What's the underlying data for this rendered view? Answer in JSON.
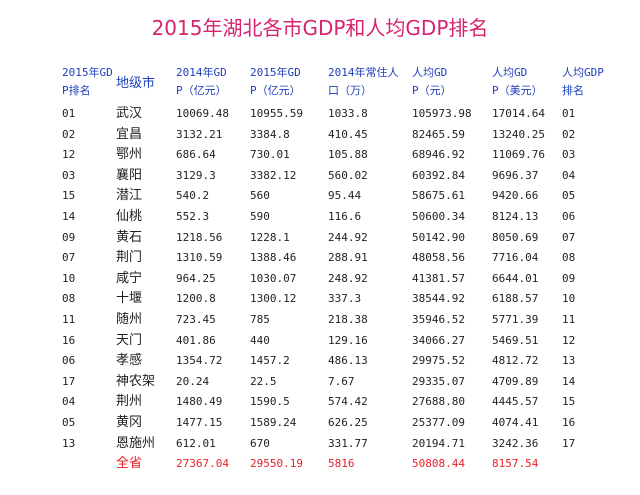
{
  "title": "2015年湖北各市GDP和人均GDP排名",
  "headers": [
    {
      "line1": "2015年GD",
      "line2": "P排名"
    },
    {
      "line1": "地级市",
      "line2": ""
    },
    {
      "line1": "2014年GD",
      "line2": "P（亿元）"
    },
    {
      "line1": "2015年GD",
      "line2": "P（亿元）"
    },
    {
      "line1": "2014年常住人",
      "line2": "口（万）"
    },
    {
      "line1": "人均GD",
      "line2": "P（元）"
    },
    {
      "line1": "人均GD",
      "line2": "P（美元）"
    },
    {
      "line1": "人均GDP",
      "line2": "排名"
    }
  ],
  "rows": [
    [
      "01",
      "武汉",
      "10069.48",
      "10955.59",
      "1033.8",
      "105973.98",
      "17014.64",
      "01"
    ],
    [
      "02",
      "宜昌",
      "3132.21",
      "3384.8",
      "410.45",
      "82465.59",
      "13240.25",
      "02"
    ],
    [
      "12",
      "鄂州",
      "686.64",
      "730.01",
      "105.88",
      "68946.92",
      "11069.76",
      "03"
    ],
    [
      "03",
      "襄阳",
      "3129.3",
      "3382.12",
      "560.02",
      "60392.84",
      "9696.37",
      "04"
    ],
    [
      "15",
      "潜江",
      "540.2",
      "560",
      "95.44",
      "58675.61",
      "9420.66",
      "05"
    ],
    [
      "14",
      "仙桃",
      "552.3",
      "590",
      "116.6",
      "50600.34",
      "8124.13",
      "06"
    ],
    [
      "09",
      "黄石",
      "1218.56",
      "1228.1",
      "244.92",
      "50142.90",
      "8050.69",
      "07"
    ],
    [
      "07",
      "荆门",
      "1310.59",
      "1388.46",
      "288.91",
      "48058.56",
      "7716.04",
      "08"
    ],
    [
      "10",
      "咸宁",
      "964.25",
      "1030.07",
      "248.92",
      "41381.57",
      "6644.01",
      "09"
    ],
    [
      "08",
      "十堰",
      "1200.8",
      "1300.12",
      "337.3",
      "38544.92",
      "6188.57",
      "10"
    ],
    [
      "11",
      "随州",
      "723.45",
      "785",
      "218.38",
      "35946.52",
      "5771.39",
      "11"
    ],
    [
      "16",
      "天门",
      "401.86",
      "440",
      "129.16",
      "34066.27",
      "5469.51",
      "12"
    ],
    [
      "06",
      "孝感",
      "1354.72",
      "1457.2",
      "486.13",
      "29975.52",
      "4812.72",
      "13"
    ],
    [
      "17",
      "神农架",
      "20.24",
      "22.5",
      "7.67",
      "29335.07",
      "4709.89",
      "14"
    ],
    [
      "04",
      "荆州",
      "1480.49",
      "1590.5",
      "574.42",
      "27688.80",
      "4445.57",
      "15"
    ],
    [
      "05",
      "黄冈",
      "1477.15",
      "1589.24",
      "626.25",
      "25377.09",
      "4074.41",
      "16"
    ],
    [
      "13",
      "恩施州",
      "612.01",
      "670",
      "331.77",
      "20194.71",
      "3242.36",
      "17"
    ]
  ],
  "total": [
    "",
    "全省",
    "27367.04",
    "29550.19",
    "5816",
    "50808.44",
    "8157.54",
    ""
  ],
  "colors": {
    "title": "#d6246e",
    "header": "#1d3fbf",
    "total": "#e8202a",
    "body": "#222222"
  }
}
